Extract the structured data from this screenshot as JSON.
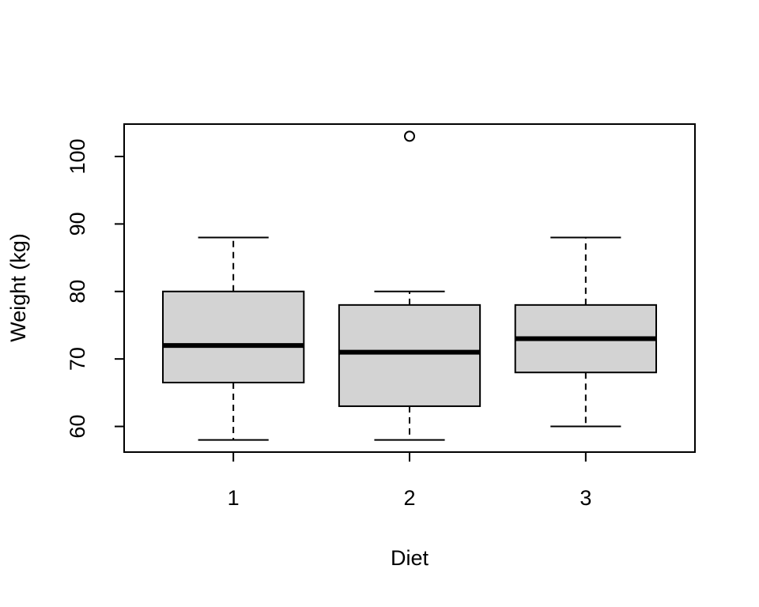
{
  "chart_data": {
    "type": "box",
    "xlabel": "Diet",
    "ylabel": "Weight (kg)",
    "categories": [
      "1",
      "2",
      "3"
    ],
    "boxes": [
      {
        "whislo": 58,
        "q1": 66.5,
        "med": 72,
        "q3": 80,
        "whishi": 88,
        "outliers": []
      },
      {
        "whislo": 58,
        "q1": 63,
        "med": 71,
        "q3": 78,
        "whishi": 80,
        "outliers": [
          103
        ]
      },
      {
        "whislo": 60,
        "q1": 68,
        "med": 73,
        "q3": 78,
        "whishi": 88,
        "outliers": []
      }
    ],
    "color": "#d3d3d3",
    "ylim": [
      56.2,
      104.8
    ],
    "yticks": [
      60,
      70,
      80,
      90,
      100
    ]
  }
}
